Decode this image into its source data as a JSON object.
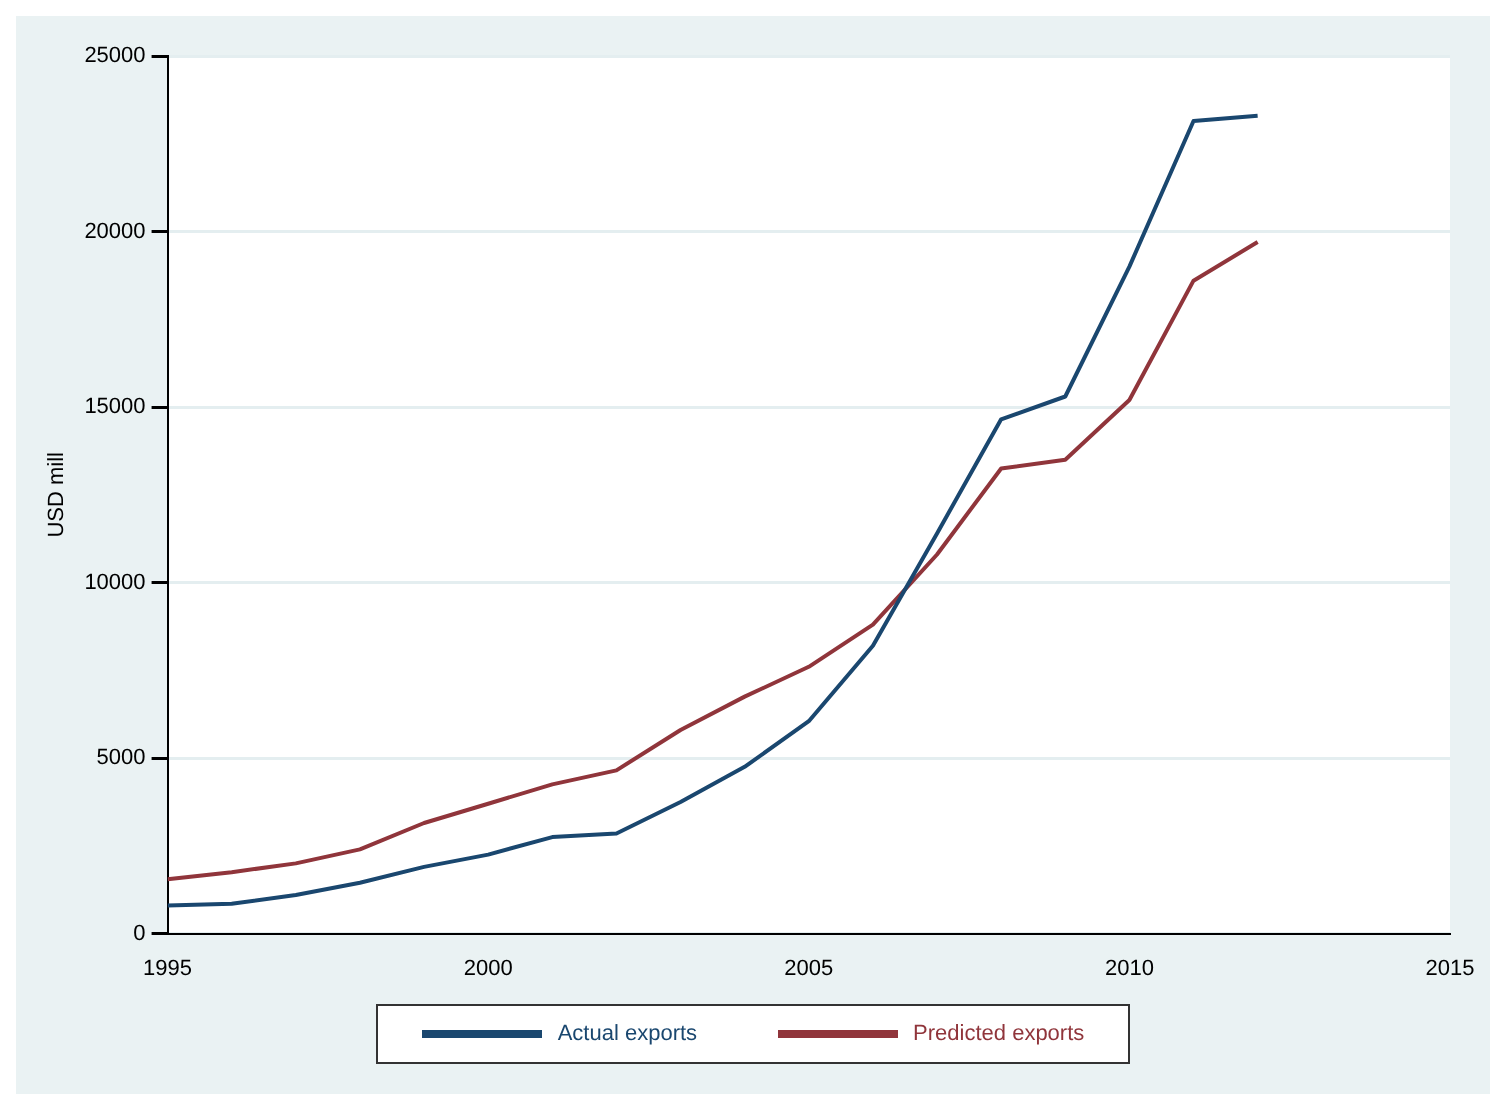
{
  "chart_data": {
    "type": "line",
    "ylabel": "USD mill",
    "x": [
      1995,
      1996,
      1997,
      1998,
      1999,
      2000,
      2001,
      2002,
      2003,
      2004,
      2005,
      2006,
      2007,
      2008,
      2009,
      2010,
      2011,
      2012
    ],
    "series": [
      {
        "name": "Actual exports",
        "color": "#1a476f",
        "values": [
          800,
          850,
          1100,
          1450,
          1900,
          2250,
          2750,
          2850,
          3750,
          4750,
          6050,
          8200,
          11400,
          14650,
          15300,
          19000,
          23150,
          23300
        ]
      },
      {
        "name": "Predicted exports",
        "color": "#90353b",
        "values": [
          1550,
          1750,
          2000,
          2400,
          3150,
          3700,
          4250,
          4650,
          5800,
          6750,
          7600,
          8800,
          10800,
          13250,
          13500,
          15200,
          18600,
          19700
        ]
      }
    ],
    "xlim": [
      1995,
      2015
    ],
    "xticks": [
      1995,
      2000,
      2005,
      2010,
      2015
    ],
    "ylim": [
      0,
      25000
    ],
    "yticks": [
      0,
      5000,
      10000,
      15000,
      20000,
      25000
    ],
    "grid": "y",
    "legend": "bottom",
    "marker": "none",
    "line_style": "solid"
  }
}
